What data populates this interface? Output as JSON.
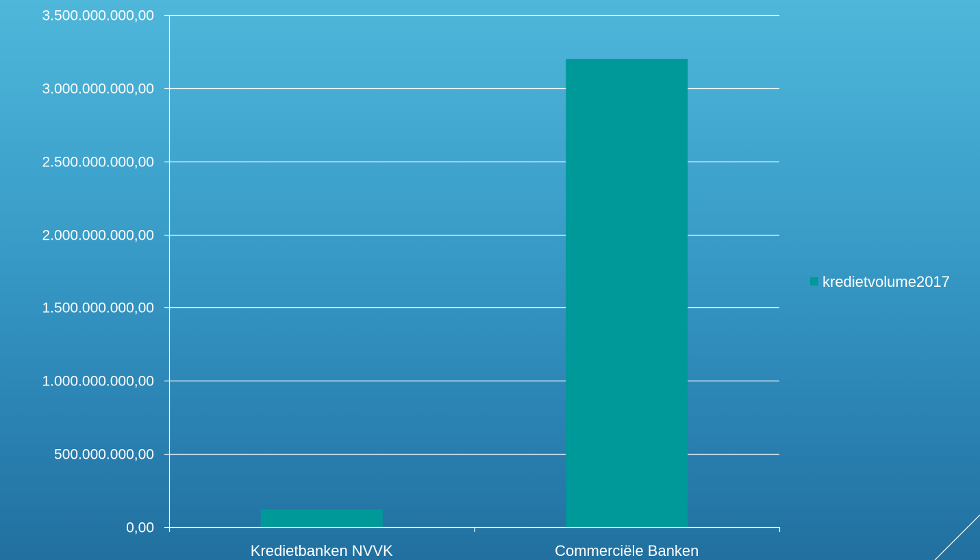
{
  "colors": {
    "bar": "#009999",
    "gridline": "#ffffff",
    "text": "#ffffff"
  },
  "chart_data": {
    "type": "bar",
    "categories": [
      "Kredietbanken NVVK",
      "Commerciële Banken"
    ],
    "series": [
      {
        "name": "kredietvolume2017",
        "values": [
          120000000,
          3200000000
        ]
      }
    ],
    "ylim": [
      0,
      3500000000
    ],
    "yticks": [
      0,
      500000000,
      1000000000,
      1500000000,
      2000000000,
      2500000000,
      3000000000,
      3500000000
    ],
    "ytick_labels": [
      "0,00",
      "500.000.000,00",
      "1.000.000.000,00",
      "1.500.000.000,00",
      "2.000.000.000,00",
      "2.500.000.000,00",
      "3.000.000.000,00",
      "3.500.000.000,00"
    ],
    "grid": true,
    "legend": "right"
  }
}
